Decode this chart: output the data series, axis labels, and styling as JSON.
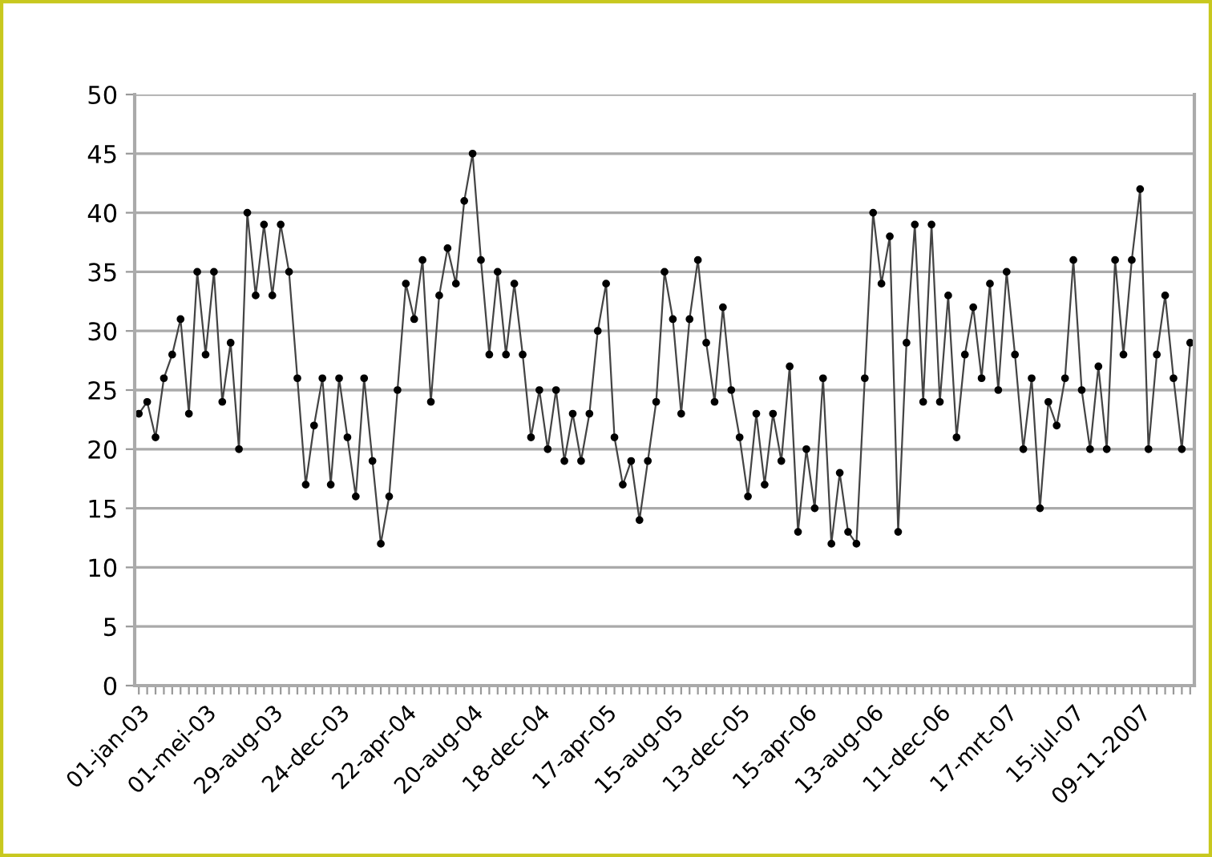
{
  "chart_data": {
    "type": "line",
    "categories": [
      "01-jan-03",
      null,
      null,
      null,
      null,
      null,
      null,
      null,
      "01-mei-03",
      null,
      null,
      null,
      null,
      null,
      null,
      null,
      "29-aug-03",
      null,
      null,
      null,
      null,
      null,
      null,
      null,
      "24-dec-03",
      null,
      null,
      null,
      null,
      null,
      null,
      null,
      "22-apr-04",
      null,
      null,
      null,
      null,
      null,
      null,
      null,
      "20-aug-04",
      null,
      null,
      null,
      null,
      null,
      null,
      null,
      "18-dec-04",
      null,
      null,
      null,
      null,
      null,
      null,
      null,
      "17-apr-05",
      null,
      null,
      null,
      null,
      null,
      null,
      null,
      "15-aug-05",
      null,
      null,
      null,
      null,
      null,
      null,
      null,
      "13-dec-05",
      null,
      null,
      null,
      null,
      null,
      null,
      null,
      "15-apr-06",
      null,
      null,
      null,
      null,
      null,
      null,
      null,
      "13-aug-06",
      null,
      null,
      null,
      null,
      null,
      null,
      null,
      "11-dec-06",
      null,
      null,
      null,
      null,
      null,
      null,
      null,
      "17-mrt-07",
      null,
      null,
      null,
      null,
      null,
      null,
      null,
      "15-jul-07",
      null,
      null,
      null,
      null,
      null,
      null,
      null,
      "09-11-2007",
      null,
      null,
      null,
      null,
      null,
      null
    ],
    "series": [
      {
        "color": "#444444",
        "values": [
          23,
          24,
          21,
          26,
          28,
          31,
          23,
          35,
          28,
          35,
          24,
          29,
          20,
          40,
          33,
          39,
          33,
          39,
          35,
          26,
          17,
          22,
          26,
          17,
          26,
          21,
          16,
          26,
          19,
          12,
          16,
          25,
          34,
          31,
          36,
          24,
          33,
          37,
          34,
          41,
          45,
          36,
          28,
          35,
          28,
          34,
          28,
          21,
          25,
          20,
          25,
          19,
          23,
          19,
          23,
          30,
          34,
          21,
          17,
          19,
          14,
          19,
          24,
          35,
          31,
          23,
          31,
          36,
          29,
          24,
          32,
          25,
          21,
          16,
          23,
          17,
          23,
          19,
          27,
          13,
          20,
          15,
          26,
          12,
          18,
          13,
          12,
          26,
          40,
          34,
          38,
          13,
          29,
          39,
          24,
          39,
          24,
          33,
          21,
          28,
          32,
          26,
          34,
          25,
          35,
          28,
          20,
          26,
          15,
          24,
          22,
          26,
          36,
          25,
          20,
          27,
          20,
          36,
          28,
          36,
          42,
          20,
          28,
          33,
          26,
          20,
          29
        ]
      }
    ],
    "ylim": [
      0,
      50
    ],
    "yticks": [
      0,
      5,
      10,
      15,
      20,
      25,
      30,
      35,
      40,
      45,
      50
    ],
    "grid": "y",
    "marker": "circle",
    "line_style": "solid"
  }
}
